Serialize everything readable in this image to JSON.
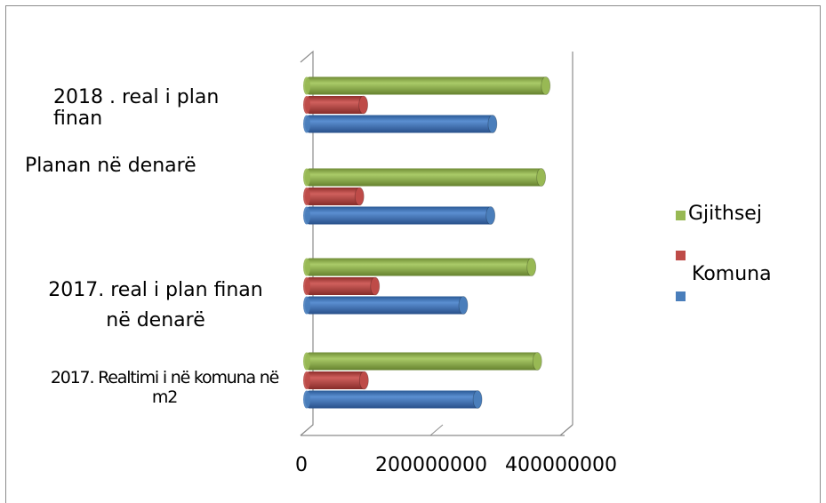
{
  "chart_data": {
    "type": "bar",
    "orientation": "horizontal",
    "style": "3d-cylinder",
    "categories": [
      "2017. Realtimi i në komuna në m2",
      "2017. real i plan finan në denarë",
      "Planan në denarë",
      "2018 . real i plan finan"
    ],
    "series": [
      {
        "name": "",
        "color": "#4a7ebb",
        "values": [
          270000000,
          248000000,
          290000000,
          293000000
        ]
      },
      {
        "name": "Komuna",
        "color": "#be4b48",
        "values": [
          95000000,
          112000000,
          88000000,
          94000000
        ]
      },
      {
        "name": "Gjithsej",
        "color": "#98b954",
        "values": [
          362000000,
          353000000,
          368000000,
          375000000
        ]
      }
    ],
    "x_ticks": [
      "0",
      "200000000",
      "400000000"
    ],
    "xlim": [
      0,
      400000000
    ],
    "legend_position": "right",
    "grid": false
  },
  "category_lines": [
    [
      "2017. Realtimi i në komuna në",
      "m2"
    ],
    [
      "2017. real i plan finan",
      "në denarë"
    ],
    [
      "Planan në denarë"
    ],
    [
      "2018 . real i plan",
      "finan"
    ]
  ],
  "legend": [
    {
      "label": "Gjithsej",
      "color": "#98b954"
    },
    {
      "label": "Komuna",
      "color": "#be4b48"
    },
    {
      "label": "",
      "color": "#4a7ebb"
    }
  ]
}
